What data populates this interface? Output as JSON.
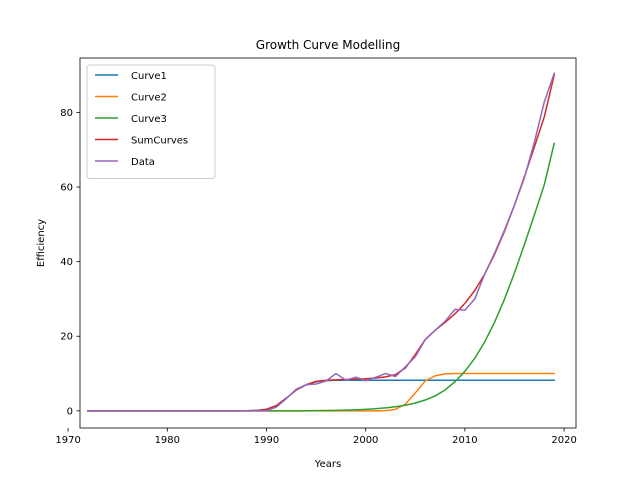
{
  "chart_data": {
    "type": "line",
    "title": "Growth Curve Modelling",
    "xlabel": "Years",
    "ylabel": "Efficiency",
    "xlim": [
      1971.2,
      2021.2
    ],
    "ylim": [
      -4.6,
      94.6
    ],
    "xticks": [
      1970,
      1980,
      1990,
      2000,
      2010,
      2020
    ],
    "yticks": [
      0,
      20,
      40,
      60,
      80
    ],
    "grid": false,
    "legend": "top-left",
    "x": [
      1972,
      1973,
      1974,
      1975,
      1976,
      1977,
      1978,
      1979,
      1980,
      1981,
      1982,
      1983,
      1984,
      1985,
      1986,
      1987,
      1988,
      1989,
      1990,
      1991,
      1992,
      1993,
      1994,
      1995,
      1996,
      1997,
      1998,
      1999,
      2000,
      2001,
      2002,
      2003,
      2004,
      2005,
      2006,
      2007,
      2008,
      2009,
      2010,
      2011,
      2012,
      2013,
      2014,
      2015,
      2016,
      2017,
      2018,
      2019
    ],
    "series": [
      {
        "name": "Curve1",
        "color": "#1f77b4",
        "values": [
          0,
          0,
          0,
          0,
          0,
          0,
          0,
          0,
          0,
          0,
          0,
          0,
          0,
          0,
          0,
          0,
          0.02,
          0.1,
          0.4,
          1.4,
          3.4,
          5.6,
          7.0,
          7.8,
          8.1,
          8.2,
          8.2,
          8.2,
          8.2,
          8.2,
          8.2,
          8.2,
          8.2,
          8.2,
          8.2,
          8.2,
          8.2,
          8.2,
          8.2,
          8.2,
          8.2,
          8.2,
          8.2,
          8.2,
          8.2,
          8.2,
          8.2,
          8.2
        ]
      },
      {
        "name": "Curve2",
        "color": "#ff7f0e",
        "values": [
          0,
          0,
          0,
          0,
          0,
          0,
          0,
          0,
          0,
          0,
          0,
          0,
          0,
          0,
          0,
          0,
          0,
          0,
          0,
          0,
          0,
          0,
          0,
          0,
          0,
          0,
          0,
          0,
          0,
          0,
          0.05,
          0.4,
          1.8,
          4.8,
          8.0,
          9.4,
          9.9,
          10,
          10,
          10,
          10,
          10,
          10,
          10,
          10,
          10,
          10,
          10
        ]
      },
      {
        "name": "Curve3",
        "color": "#2ca02c",
        "values": [
          0,
          0,
          0,
          0,
          0,
          0,
          0,
          0,
          0,
          0,
          0,
          0,
          0,
          0,
          0,
          0,
          0,
          0,
          0,
          0,
          0,
          0,
          0.02,
          0.05,
          0.08,
          0.12,
          0.18,
          0.27,
          0.4,
          0.57,
          0.8,
          1.1,
          1.5,
          2.1,
          2.9,
          4.0,
          5.6,
          7.8,
          10.6,
          14.1,
          18.5,
          23.8,
          30.0,
          37.0,
          44.6,
          52.5,
          60.6,
          71.7
        ]
      },
      {
        "name": "SumCurves",
        "color": "#d62728",
        "values": [
          0,
          0,
          0,
          0,
          0,
          0,
          0,
          0,
          0,
          0,
          0,
          0,
          0,
          0,
          0,
          0,
          0.02,
          0.1,
          0.4,
          1.4,
          3.4,
          5.6,
          7.0,
          7.9,
          8.2,
          8.3,
          8.4,
          8.5,
          8.6,
          8.8,
          9.1,
          9.7,
          11.5,
          15.1,
          19.1,
          21.6,
          23.7,
          26.0,
          28.8,
          32.3,
          36.7,
          42.0,
          48.2,
          55.2,
          62.8,
          70.7,
          78.8,
          90.0
        ]
      },
      {
        "name": "Data",
        "color": "#9467bd",
        "values": [
          0,
          0,
          0,
          0,
          0,
          0,
          0,
          0,
          0,
          0,
          0,
          0,
          0,
          0,
          0,
          0,
          0,
          0,
          0,
          1.0,
          3.3,
          5.8,
          7.0,
          7.2,
          8.0,
          10.0,
          8.2,
          9.0,
          8.1,
          9.0,
          10.0,
          9.2,
          11.8,
          14.5,
          19.1,
          21.6,
          24.0,
          27.2,
          27.0,
          30.0,
          36.7,
          42.3,
          48.5,
          55.2,
          62.5,
          72.0,
          82.8,
          90.5
        ]
      }
    ]
  }
}
